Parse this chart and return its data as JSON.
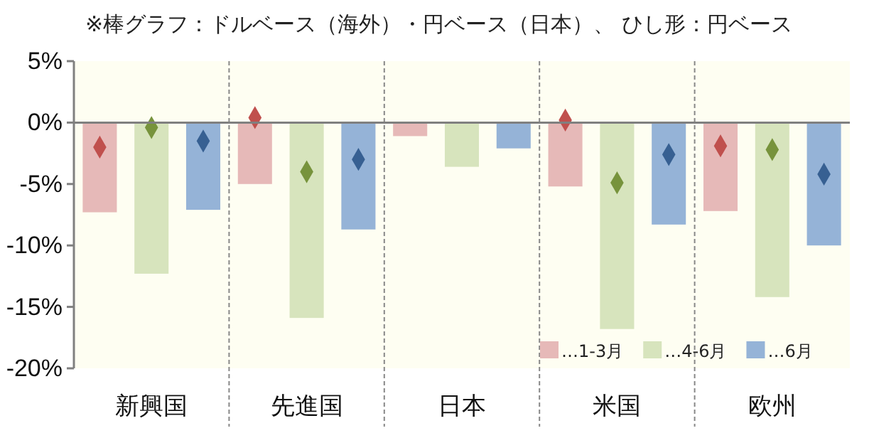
{
  "chart_data": {
    "type": "bar",
    "title": "※棒グラフ：ドルベース（海外）・円ベース（日本）、 ひし形：円ベース",
    "categories": [
      "新興国",
      "先進国",
      "日本",
      "米国",
      "欧州"
    ],
    "series": [
      {
        "name": "…1-3月",
        "color": "#e6b9b8",
        "values": [
          -7.3,
          -5.0,
          -1.1,
          -5.2,
          -7.2
        ]
      },
      {
        "name": "…4-6月",
        "color": "#d7e4bd",
        "values": [
          -12.3,
          -15.9,
          -3.6,
          -16.8,
          -14.2
        ]
      },
      {
        "name": "…6月",
        "color": "#95b3d7",
        "values": [
          -7.1,
          -8.7,
          -2.1,
          -8.3,
          -10.0
        ]
      },
      {
        "type": "scatter",
        "color": "#c0504d",
        "values": [
          -2.0,
          0.4,
          null,
          0.2,
          -1.9
        ]
      },
      {
        "type": "scatter",
        "color": "#77933c",
        "values": [
          -0.4,
          -4.0,
          null,
          -4.9,
          -2.2
        ]
      },
      {
        "type": "scatter",
        "color": "#376092",
        "values": [
          -1.5,
          -3.0,
          null,
          -2.6,
          -4.2
        ]
      }
    ],
    "ylim": [
      -20,
      5
    ],
    "yticks": [
      {
        "value": 5,
        "label": "5%"
      },
      {
        "value": 0,
        "label": "0%"
      },
      {
        "value": -5,
        "label": "-5%"
      },
      {
        "value": -10,
        "label": "-10%"
      },
      {
        "value": -15,
        "label": "-15%"
      },
      {
        "value": -20,
        "label": "-20%"
      }
    ],
    "marker": "diamond",
    "legend": "bottom right",
    "grid": false
  }
}
